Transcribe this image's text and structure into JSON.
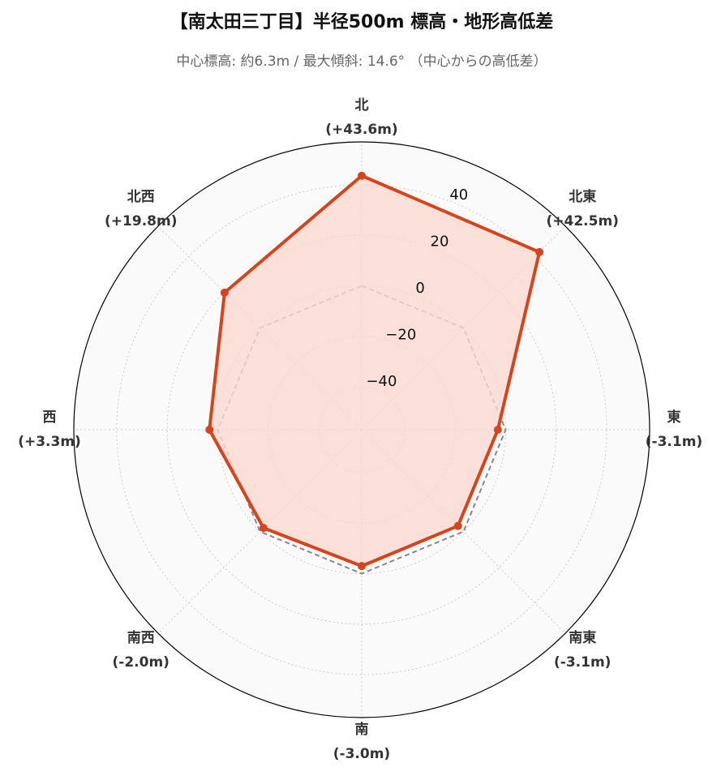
{
  "chart_data": {
    "type": "radar",
    "title": "【南太田三丁目】半径500m 標高・地形高低差",
    "subtitle": "中心標高: 約6.3m / 最大傾斜: 14.6° （中心からの高低差）",
    "categories": [
      "北",
      "北東",
      "東",
      "南東",
      "南",
      "南西",
      "西",
      "北西"
    ],
    "values": [
      43.6,
      42.5,
      -3.1,
      -3.1,
      -3.0,
      -2.0,
      3.3,
      19.8
    ],
    "value_labels": [
      "(+43.6m)",
      "(+42.5m)",
      "(-3.1m)",
      "(-3.1m)",
      "(-3.0m)",
      "(-2.0m)",
      "(+3.3m)",
      "(+19.8m)"
    ],
    "color": "#d5441c",
    "fill_color": "#fbd9d1",
    "baseline": 0,
    "ylim": [
      -57,
      57
    ],
    "yticks": [
      {
        "value": -40,
        "label": "−40"
      },
      {
        "value": -20,
        "label": "−20"
      },
      0,
      20,
      40
    ],
    "grid": true
  }
}
